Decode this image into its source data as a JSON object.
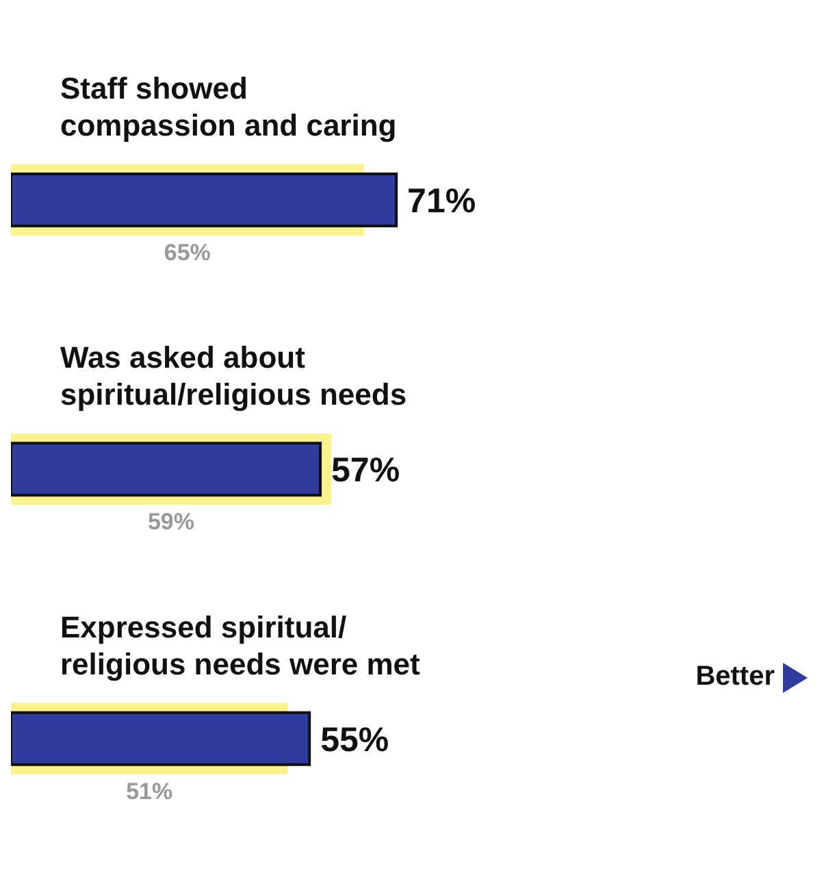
{
  "chart_data": {
    "type": "bar",
    "orientation": "horizontal",
    "categories": [
      "Staff showed compassion and caring",
      "Was asked about spiritual/religious needs",
      "Expressed spiritual/religious needs were met"
    ],
    "series": [
      {
        "color": "#fbf28c",
        "values": [
          65,
          59,
          51
        ],
        "value_labels": [
          "65%",
          "59%",
          "51%"
        ]
      },
      {
        "color": "#2f3c9e",
        "values": [
          71,
          57,
          55
        ],
        "value_labels": [
          "71%",
          "57%",
          "55%"
        ]
      }
    ],
    "annotations": [
      "Better"
    ]
  }
}
